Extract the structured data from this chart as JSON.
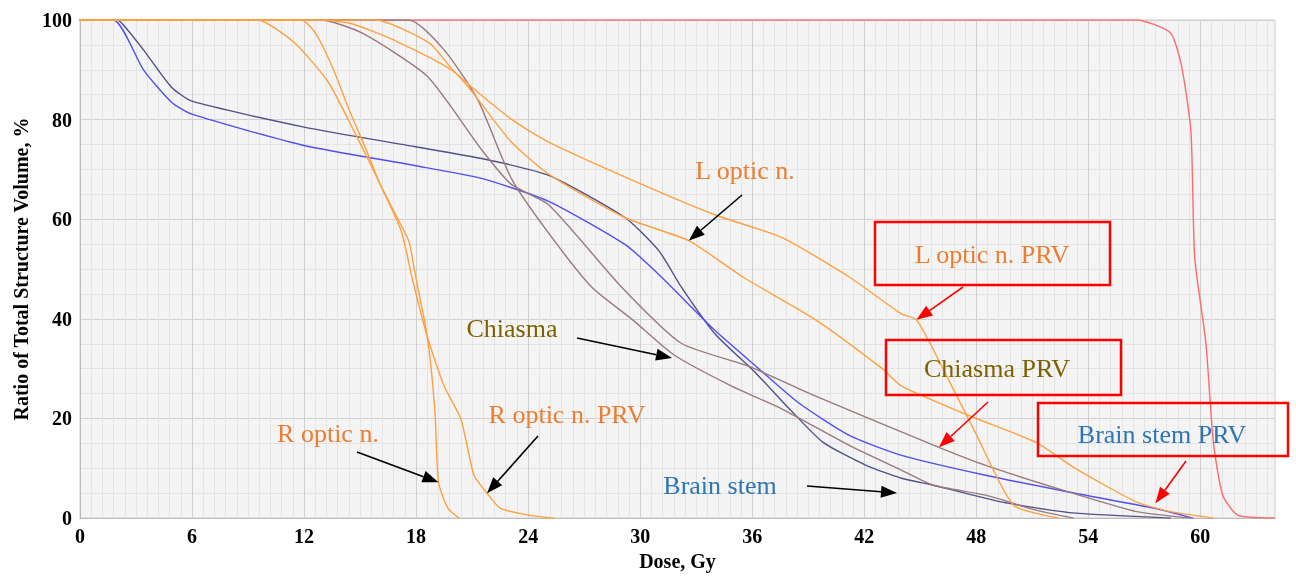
{
  "chart_data": {
    "type": "line",
    "xlabel": "Dose, Gy",
    "ylabel": "Ratio of Total Structure Volume, %",
    "xlim": [
      0,
      64
    ],
    "ylim": [
      0,
      100
    ],
    "xticks": [
      0,
      6,
      12,
      18,
      24,
      30,
      36,
      42,
      48,
      54,
      60
    ],
    "yticks": [
      0,
      20,
      40,
      60,
      80,
      100
    ],
    "grid": true,
    "marker": "none",
    "line_style": "solid",
    "series": [
      {
        "color": "#ff6a6a",
        "x": [
          0,
          56.6,
          58.4,
          59.0,
          59.5,
          59.7,
          60.3,
          60.7,
          61.2,
          62.0,
          64
        ],
        "values": [
          100,
          100,
          97.4,
          90.7,
          77.5,
          52.3,
          35.1,
          15.2,
          4.6,
          0.6,
          0
        ]
      },
      {
        "color": "#50508a",
        "x": [
          0,
          2.0,
          2.55,
          3.4,
          4.9,
          6,
          12,
          17.9,
          21.5,
          25.1,
          29.2,
          31.0,
          32.2,
          34.0,
          36.2,
          38.0,
          39.8,
          42.1,
          44.0,
          45.7,
          49.4,
          53.0,
          58.4
        ],
        "values": [
          100,
          100,
          98,
          94,
          86.5,
          83.7,
          78.5,
          74.6,
          72.2,
          68.8,
          60.3,
          53.7,
          46.4,
          37,
          29.1,
          21.9,
          15.2,
          10.6,
          8.0,
          6.6,
          3.2,
          1.1,
          0
        ]
      },
      {
        "color": "#5050f0",
        "x": [
          0,
          1.8,
          3.4,
          4.9,
          6,
          12,
          17.9,
          21.5,
          25.1,
          29.2,
          31.0,
          34.0,
          36.2,
          38.5,
          41.2,
          44.0,
          48.5,
          53.0,
          57.5,
          59.6
        ],
        "values": [
          100,
          100,
          90,
          83.5,
          81.1,
          74.8,
          70.8,
          68.2,
          63.6,
          54.9,
          48.9,
          37.7,
          30.5,
          23.1,
          16.6,
          12.6,
          8.6,
          5.2,
          2.0,
          0
        ]
      },
      {
        "color": "#9a7a7a",
        "x": [
          0,
          17.6,
          19.5,
          21.3,
          23.1,
          25.0,
          27.4,
          29.6,
          31.8,
          34.9,
          37.6,
          41.2,
          44.0,
          45.7,
          48.5,
          51.2,
          53.2
        ],
        "values": [
          100,
          100,
          94,
          84,
          68.2,
          57.7,
          46.4,
          39.8,
          32.8,
          26.5,
          21.9,
          14.6,
          9.6,
          6.6,
          4.6,
          1.6,
          0
        ]
      },
      {
        "color": "#9a7a7a",
        "x": [
          0,
          12.9,
          15.1,
          18.6,
          21.5,
          23.1,
          25.1,
          29.0,
          32.2,
          35.8,
          39.4,
          46.0,
          48.5,
          53.0,
          56.6,
          59.5
        ],
        "values": [
          100,
          100,
          97.4,
          88.7,
          74,
          67,
          62.9,
          46.4,
          35.1,
          30.5,
          24.5,
          14.2,
          10.6,
          5.2,
          1.3,
          0
        ]
      },
      {
        "color": "#ffa040",
        "x": [
          0,
          11.85,
          12.6,
          13.5,
          14.4,
          15.3,
          16.1,
          17.6,
          17.9,
          18.6,
          19.0,
          19.2,
          19.7,
          20.3
        ],
        "values": [
          100,
          100,
          97.4,
          90.7,
          82.1,
          74.2,
          66.8,
          55.7,
          50,
          36.4,
          21.9,
          7.2,
          2.0,
          0
        ]
      },
      {
        "color": "#ffa040",
        "x": [
          0,
          9.5,
          11.5,
          13.3,
          14.7,
          16.0,
          17.2,
          17.8,
          18.6,
          19.5,
          20.4,
          21.1,
          21.8,
          22.5,
          24.0,
          25.4
        ],
        "values": [
          100,
          100,
          95.4,
          87.5,
          77.5,
          67.6,
          57.7,
          48,
          36.4,
          26.5,
          19.9,
          8.6,
          5.0,
          2.0,
          0.6,
          0
        ]
      },
      {
        "color": "#ffa040",
        "x": [
          0,
          12.7,
          14.5,
          16.8,
          20.1,
          23.1,
          25.2,
          29.2,
          32.6,
          35.5,
          39.4,
          43.0,
          44.0,
          47.6,
          51.2,
          53.3,
          56.6,
          58.4,
          60.7
        ],
        "values": [
          100,
          100,
          99.3,
          96.0,
          89.4,
          75.5,
          68.8,
          60.3,
          55.7,
          48.4,
          39.8,
          29.9,
          26.5,
          20.6,
          15.2,
          10.0,
          3.2,
          1.3,
          0
        ]
      },
      {
        "color": "#ffa040",
        "x": [
          0,
          15.8,
          18.7,
          20.1,
          23.1,
          25.1,
          30.1,
          34.0,
          37.6,
          41.2,
          44.0,
          44.8,
          45.8,
          48.0,
          50.0,
          52.4
        ],
        "values": [
          100,
          100,
          95.4,
          89.4,
          80.1,
          75.5,
          67,
          60.9,
          56.3,
          48.4,
          41,
          39.8,
          33.1,
          16.8,
          2.6,
          0
        ]
      }
    ],
    "annotations": [
      {
        "text": "L optic n.",
        "x": 32.6,
        "y": 55.7
      },
      {
        "text": "L optic n. PRV",
        "x": 44.8,
        "y": 39.8
      },
      "Chiasma",
      {
        "text": "Chiasma PRV",
        "x": 46.0,
        "y": 14.2
      },
      {
        "text": "R optic n.",
        "x": 19.2,
        "y": 7.2
      },
      {
        "text": "R optic n. PRV",
        "x": 21.8,
        "y": 5.0
      },
      "Brain stem",
      {
        "text": "Brain stem PRV",
        "x": 57.6,
        "y": 3.0
      }
    ]
  }
}
